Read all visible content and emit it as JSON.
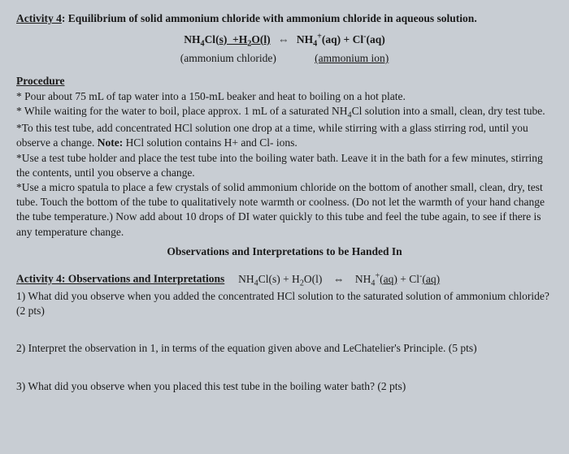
{
  "title": {
    "activity_label": "Activity 4",
    "colon": ":",
    "rest": " Equilibrium of solid ammonium chloride with ammonium chloride in aqueous solution."
  },
  "equation_main": {
    "left_html": "NH<span class='sub'>4</span>Cl(<u>s) &nbsp;+H<span class='sub'>2</span>O(l)</u>",
    "arrow": "⇔",
    "right_html": "NH<span class='sub'>4</span><span class='sup'>+</span>(aq) + Cl<span class='sup'>-</span>(aq)"
  },
  "equation_labels": {
    "left": "(ammonium chloride)",
    "right": "(ammonium ion)"
  },
  "procedure_heading": "Procedure",
  "procedure_items": [
    "* Pour about 75 mL of tap water into a 150-mL beaker and heat to boiling on a hot plate.",
    "* While waiting for the water to boil, place approx. 1 mL of a saturated NH<span class='sub'>4</span>Cl solution into a small, clean, dry test tube.",
    "*To this test tube, add concentrated HCl solution one drop at a time, while stirring with a glass stirring rod, until you observe a change. <b>Note:</b> HCl solution contains H+ and Cl- ions.",
    "*Use a test tube holder and place the test tube into the boiling water bath. Leave it in the bath for a few minutes, stirring the contents, until you observe a change.",
    "*Use a micro spatula to place a few crystals of solid ammonium chloride on the bottom of another small, clean, dry, test tube. Touch the bottom of the tube to qualitatively note warmth or coolness. (Do not let the warmth of your hand change the tube temperature.) Now add about 10 drops of DI water quickly to this tube and feel the tube again, to see if there is any temperature change."
  ],
  "observations_heading": "Observations and Interpretations to be Handed In",
  "section2": {
    "heading_label": "Activity 4: Observations and Interpretations",
    "eq_html": "NH<span class='sub'>4</span>Cl(s) + H<span class='sub'>2</span>O(l) &nbsp;&nbsp; ⇔ &nbsp;&nbsp; NH<span class='sub'>4</span><span class='sup'>+</span><u>(aq)</u> + Cl<span class='sup'>-</span><u>(aq)</u>"
  },
  "questions": [
    "1) What did you observe when you added the concentrated HCl solution to the saturated solution of ammonium chloride? (2 pts)",
    "2) Interpret the observation in 1, in terms of the equation given above and LeChatelier's Principle. (5 pts)",
    "3) What did you observe when you placed this test tube in the boiling water bath? (2 pts)"
  ]
}
